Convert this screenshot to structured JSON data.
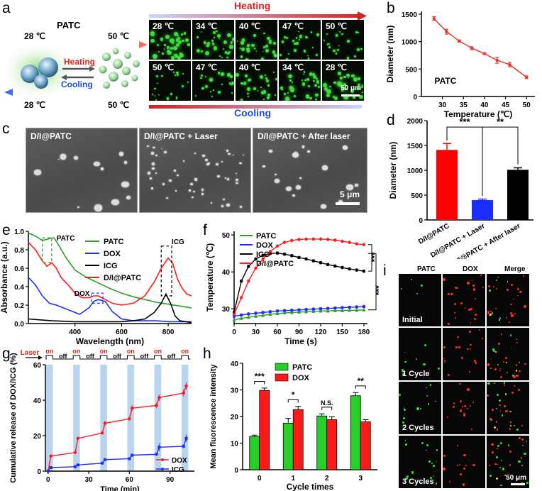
{
  "panel_letters": {
    "a": "a",
    "b": "b",
    "c": "c",
    "d": "d",
    "e": "e",
    "f": "f",
    "g": "g",
    "h": "h",
    "i": "i"
  },
  "panel_a": {
    "title": "PATC",
    "temp_top_left": "28 ℃",
    "temp_top_right": "50 ℃",
    "temp_bottom_left": "28 ℃",
    "temp_bottom_right": "50 ℃",
    "heating": "Heating",
    "cooling": "Cooling",
    "heating_bar": "Heating",
    "cooling_bar": "Cooling",
    "top_row": [
      "28 ℃",
      "34 ℃",
      "40 ℃",
      "47 ℃",
      "50 ℃"
    ],
    "bottom_row": [
      "50 ℃",
      "47 ℃",
      "40 ℃",
      "34 ℃",
      "28 ℃"
    ],
    "scale": "50 μm",
    "colors": {
      "heating": "#e0201a",
      "cooling": "#1f4fd6",
      "fluor": "#3fdc3f"
    }
  },
  "chart_data": [
    {
      "id": "b",
      "type": "line",
      "annotation": "PATC",
      "xlabel": "Temperature (℃)",
      "ylabel": "Diameter (nm)",
      "x": [
        28,
        31,
        34,
        37,
        40,
        43,
        46,
        50
      ],
      "y": [
        1420,
        1180,
        1010,
        880,
        780,
        660,
        580,
        350
      ],
      "err": [
        35,
        45,
        20,
        25,
        15,
        55,
        40,
        25
      ],
      "xlim": [
        25,
        52
      ],
      "ylim": [
        0,
        1550
      ],
      "xticks": [
        "30",
        "35",
        "40",
        "45",
        "50"
      ],
      "xtick_values": [
        30,
        35,
        40,
        45,
        50
      ],
      "yticks": [
        "0",
        "500",
        "1000",
        "1500"
      ],
      "ytick_values": [
        0,
        500,
        1000,
        1500
      ],
      "color": "#e8392c"
    },
    {
      "id": "d",
      "type": "bar",
      "ylabel": "Diameter (nm)",
      "categories": [
        "D/I@PATC",
        "D/I@PATC + Laser",
        "D/I@PATC + After laser"
      ],
      "values": [
        1410,
        400,
        1010
      ],
      "err": [
        130,
        20,
        40
      ],
      "colors": [
        "#ff0000",
        "#1e2dff",
        "#000000"
      ],
      "ylim": [
        0,
        2000
      ],
      "yticks": [
        "0",
        "500",
        "1000",
        "1500",
        "2000"
      ],
      "ytick_values": [
        0,
        500,
        1000,
        1500,
        2000
      ],
      "sig": [
        "***",
        "**"
      ]
    },
    {
      "id": "e",
      "type": "line",
      "xlabel": "Wavelength (nm)",
      "ylabel": "Absorbance (a.u.)",
      "xlim": [
        200,
        900
      ],
      "ylim": [
        0,
        1.0
      ],
      "xticks": [
        "400",
        "600",
        "800"
      ],
      "xtick_values": [
        400,
        600,
        800
      ],
      "yticks": [
        "0.0",
        "0.2",
        "0.4",
        "0.6",
        "0.8",
        "1.0"
      ],
      "ytick_values": [
        0,
        0.2,
        0.4,
        0.6,
        0.8,
        1.0
      ],
      "annotations": [
        "PATC",
        "DOX",
        "ICG"
      ],
      "series": [
        {
          "name": "PATC",
          "color": "#2aa02a",
          "x": [
            200,
            230,
            260,
            290,
            310,
            330,
            360,
            400,
            450,
            500,
            550,
            600,
            650,
            700,
            750,
            800,
            850,
            900
          ],
          "y": [
            0.98,
            0.95,
            0.9,
            0.92,
            0.93,
            0.85,
            0.72,
            0.58,
            0.5,
            0.44,
            0.38,
            0.33,
            0.29,
            0.26,
            0.23,
            0.21,
            0.19,
            0.17
          ]
        },
        {
          "name": "DOX",
          "color": "#1e2dff",
          "x": [
            200,
            230,
            260,
            290,
            320,
            350,
            380,
            420,
            460,
            480,
            500,
            530,
            560,
            600,
            650,
            700,
            750,
            800,
            850,
            900
          ],
          "y": [
            0.5,
            0.42,
            0.3,
            0.22,
            0.2,
            0.17,
            0.14,
            0.1,
            0.17,
            0.24,
            0.26,
            0.24,
            0.13,
            0.05,
            0.03,
            0.03,
            0.03,
            0.02,
            0.02,
            0.02
          ]
        },
        {
          "name": "ICG",
          "color": "#000000",
          "x": [
            200,
            250,
            300,
            400,
            500,
            600,
            650,
            700,
            740,
            770,
            790,
            810,
            830,
            850,
            900
          ],
          "y": [
            0.05,
            0.04,
            0.03,
            0.02,
            0.02,
            0.02,
            0.03,
            0.05,
            0.12,
            0.22,
            0.32,
            0.22,
            0.08,
            0.03,
            0.01
          ]
        },
        {
          "name": "D/I@PATC",
          "color": "#ff1a1a",
          "x": [
            200,
            230,
            260,
            280,
            300,
            320,
            340,
            370,
            400,
            430,
            460,
            480,
            500,
            530,
            560,
            600,
            650,
            700,
            740,
            770,
            800,
            820,
            840,
            860,
            880,
            900
          ],
          "y": [
            0.88,
            0.8,
            0.68,
            0.62,
            0.66,
            0.6,
            0.5,
            0.42,
            0.33,
            0.28,
            0.28,
            0.3,
            0.3,
            0.26,
            0.22,
            0.2,
            0.22,
            0.3,
            0.45,
            0.6,
            0.71,
            0.65,
            0.48,
            0.38,
            0.32,
            0.3
          ]
        }
      ]
    },
    {
      "id": "f",
      "type": "line",
      "xlabel": "Time (s)",
      "ylabel": "Temperature (℃)",
      "xlim": [
        0,
        185
      ],
      "ylim": [
        26,
        51
      ],
      "xticks": [
        "0",
        "30",
        "60",
        "90",
        "120",
        "150",
        "180"
      ],
      "xtick_values": [
        0,
        30,
        60,
        90,
        120,
        150,
        180
      ],
      "yticks": [
        "30",
        "40",
        "50"
      ],
      "ytick_values": [
        30,
        40,
        50
      ],
      "sig": [
        "***",
        "***"
      ],
      "series": [
        {
          "name": "PATC",
          "color": "#2aa02a",
          "x": [
            0,
            10,
            20,
            30,
            40,
            50,
            60,
            70,
            80,
            90,
            100,
            110,
            120,
            130,
            140,
            150,
            160,
            170,
            180
          ],
          "y": [
            27.0,
            27.4,
            27.7,
            28.0,
            28.2,
            28.5,
            28.7,
            28.9,
            29.0,
            29.1,
            29.2,
            29.3,
            29.4,
            29.4,
            29.5,
            29.5,
            29.6,
            29.6,
            29.7
          ]
        },
        {
          "name": "DOX",
          "color": "#1e2dff",
          "x": [
            0,
            10,
            20,
            30,
            40,
            50,
            60,
            70,
            80,
            90,
            100,
            110,
            120,
            130,
            140,
            150,
            160,
            170,
            180
          ],
          "y": [
            28.0,
            28.3,
            28.6,
            28.8,
            29.0,
            29.2,
            29.4,
            29.5,
            29.6,
            29.7,
            29.8,
            29.9,
            30.0,
            30.1,
            30.2,
            30.3,
            30.4,
            30.5,
            30.6
          ]
        },
        {
          "name": "ICG",
          "color": "#000000",
          "x": [
            0,
            10,
            20,
            30,
            40,
            50,
            60,
            70,
            80,
            90,
            100,
            110,
            120,
            130,
            140,
            150,
            160,
            170,
            180
          ],
          "y": [
            29.0,
            37.5,
            41.5,
            43.5,
            44.5,
            45.0,
            45.1,
            44.8,
            44.4,
            43.9,
            43.5,
            43.0,
            42.5,
            42.0,
            41.6,
            41.2,
            40.8,
            40.5,
            40.2
          ]
        },
        {
          "name": "D/I@PATC",
          "color": "#ff1a1a",
          "x": [
            0,
            10,
            20,
            30,
            40,
            50,
            60,
            70,
            80,
            90,
            100,
            110,
            120,
            130,
            140,
            150,
            160,
            170,
            180
          ],
          "y": [
            28.5,
            33.0,
            37.5,
            41.0,
            43.5,
            45.5,
            47.0,
            48.0,
            48.5,
            48.8,
            48.9,
            48.9,
            48.9,
            48.8,
            48.6,
            48.3,
            48.0,
            47.6,
            47.4
          ]
        }
      ]
    },
    {
      "id": "g",
      "type": "line",
      "xlabel": "Time (min)",
      "ylabel": "Cumulative release of DOX/ICG (%)",
      "xlim": [
        -2,
        108
      ],
      "ylim": [
        0,
        60
      ],
      "xticks": [
        "0",
        "30",
        "60",
        "90"
      ],
      "xtick_values": [
        0,
        30,
        60,
        90
      ],
      "yticks": [
        "0",
        "20",
        "40",
        "60"
      ],
      "ytick_values": [
        0,
        20,
        40,
        60
      ],
      "laser_label": "Laser",
      "on_label": "on",
      "off_label": "off",
      "on_intervals": [
        [
          0,
          2
        ],
        [
          20,
          22
        ],
        [
          40,
          42
        ],
        [
          60,
          62
        ],
        [
          80,
          82
        ],
        [
          100,
          102
        ]
      ],
      "series": [
        {
          "name": "DOX",
          "color": "#ff1a1a",
          "x": [
            0,
            2,
            20,
            22,
            40,
            42,
            60,
            62,
            80,
            82,
            100,
            102
          ],
          "y": [
            0,
            8.5,
            10.5,
            18.5,
            21.5,
            27.0,
            29.5,
            35.5,
            37.0,
            41.5,
            44.0,
            48.0
          ],
          "err": [
            0,
            0.5,
            0.8,
            0.8,
            0.8,
            1.2,
            1.2,
            1.5,
            1.5,
            1.8,
            2.0,
            2.0
          ]
        },
        {
          "name": "ICG",
          "color": "#1e2dff",
          "x": [
            0,
            2,
            20,
            22,
            40,
            42,
            60,
            62,
            80,
            82,
            100,
            102
          ],
          "y": [
            0,
            2.0,
            2.5,
            3.5,
            4.5,
            6.5,
            7.0,
            9.0,
            9.5,
            13.5,
            14.0,
            18.5
          ],
          "err": [
            0,
            0.3,
            0.3,
            0.4,
            0.4,
            0.5,
            0.5,
            0.6,
            0.6,
            2.2,
            1.0,
            2.0
          ]
        }
      ]
    },
    {
      "id": "h",
      "type": "bar",
      "xlabel": "Cycle times",
      "ylabel": "Mean fluorescence intensity",
      "categories": [
        "0",
        "1",
        "2",
        "3"
      ],
      "ylim": [
        0,
        40
      ],
      "yticks": [
        "0",
        "10",
        "20",
        "30",
        "40"
      ],
      "ytick_values": [
        0,
        10,
        20,
        30,
        40
      ],
      "sig": [
        "***",
        "*",
        "N.S.",
        "**"
      ],
      "series": [
        {
          "name": "PATC",
          "color": "#27cf27",
          "values": [
            12.5,
            17.5,
            20.2,
            27.8
          ],
          "err": [
            0.5,
            1.8,
            0.8,
            1.2
          ]
        },
        {
          "name": "DOX",
          "color": "#ff1a1a",
          "values": [
            29.8,
            22.6,
            18.8,
            18.0
          ],
          "err": [
            0.9,
            1.2,
            1.1,
            0.8
          ]
        }
      ]
    }
  ],
  "panel_c": {
    "labels": [
      "D/I@PATC",
      "D/I@PATC + Laser",
      "D/I@PATC + After laser"
    ],
    "scale": "5 μm"
  },
  "panel_i": {
    "headers": [
      "PATC",
      "DOX",
      "Merge"
    ],
    "rows": [
      "Initial",
      "1 Cycle",
      "2 Cycles",
      "3 Cycles"
    ],
    "scale": "50 μm"
  }
}
